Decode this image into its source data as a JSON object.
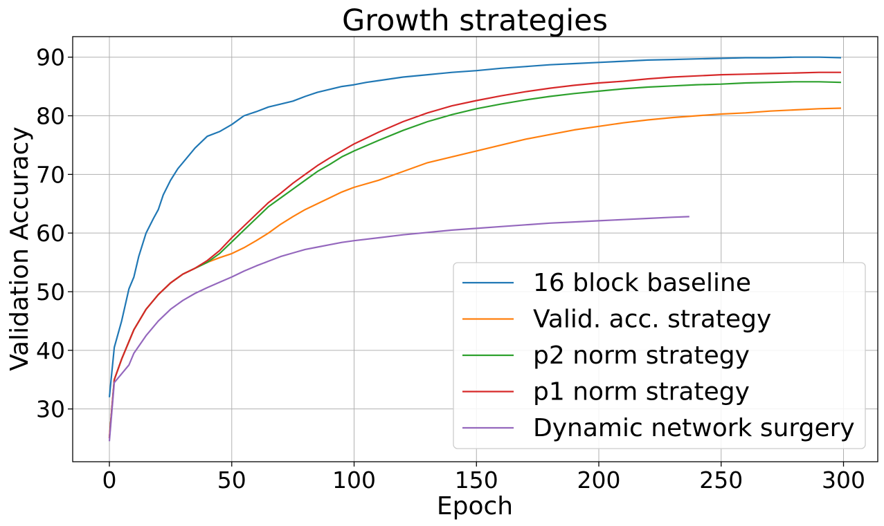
{
  "chart_data": {
    "type": "line",
    "title": "Growth strategies",
    "xlabel": "Epoch",
    "ylabel": "Validation Accuracy",
    "xlim": [
      -15,
      314
    ],
    "ylim": [
      21,
      93.5
    ],
    "xticks": [
      0,
      50,
      100,
      150,
      200,
      250,
      300
    ],
    "yticks": [
      30,
      40,
      50,
      60,
      70,
      80,
      90
    ],
    "grid": true,
    "legend_position": "lower-right",
    "series": [
      {
        "name": "16 block baseline",
        "color": "#1f77b4",
        "points": [
          [
            0,
            32
          ],
          [
            2,
            40.5
          ],
          [
            5,
            45
          ],
          [
            8,
            50.5
          ],
          [
            10,
            52.5
          ],
          [
            12,
            56
          ],
          [
            15,
            60
          ],
          [
            18,
            62.5
          ],
          [
            20,
            64
          ],
          [
            22,
            66.5
          ],
          [
            25,
            69
          ],
          [
            28,
            71
          ],
          [
            30,
            72
          ],
          [
            35,
            74.5
          ],
          [
            40,
            76.5
          ],
          [
            45,
            77.3
          ],
          [
            50,
            78.5
          ],
          [
            55,
            80
          ],
          [
            60,
            80.7
          ],
          [
            65,
            81.5
          ],
          [
            70,
            82
          ],
          [
            75,
            82.5
          ],
          [
            80,
            83.3
          ],
          [
            85,
            84
          ],
          [
            90,
            84.5
          ],
          [
            95,
            85
          ],
          [
            100,
            85.3
          ],
          [
            105,
            85.7
          ],
          [
            110,
            86
          ],
          [
            120,
            86.6
          ],
          [
            130,
            87
          ],
          [
            140,
            87.4
          ],
          [
            150,
            87.7
          ],
          [
            160,
            88.1
          ],
          [
            170,
            88.4
          ],
          [
            180,
            88.7
          ],
          [
            190,
            88.9
          ],
          [
            200,
            89.1
          ],
          [
            210,
            89.3
          ],
          [
            220,
            89.5
          ],
          [
            230,
            89.6
          ],
          [
            240,
            89.7
          ],
          [
            250,
            89.8
          ],
          [
            260,
            89.9
          ],
          [
            270,
            89.9
          ],
          [
            280,
            90
          ],
          [
            290,
            90
          ],
          [
            299,
            89.9
          ]
        ]
      },
      {
        "name": "Valid. acc. strategy",
        "color": "#ff7f0e",
        "points": [
          [
            0,
            25
          ],
          [
            2,
            35
          ],
          [
            5,
            38.5
          ],
          [
            8,
            41.5
          ],
          [
            10,
            43.5
          ],
          [
            15,
            47
          ],
          [
            20,
            49.5
          ],
          [
            25,
            51.5
          ],
          [
            30,
            53
          ],
          [
            35,
            54
          ],
          [
            40,
            55
          ],
          [
            45,
            55.8
          ],
          [
            50,
            56.5
          ],
          [
            55,
            57.5
          ],
          [
            60,
            58.7
          ],
          [
            65,
            60
          ],
          [
            70,
            61.5
          ],
          [
            75,
            62.8
          ],
          [
            80,
            64
          ],
          [
            85,
            65
          ],
          [
            90,
            66
          ],
          [
            95,
            67
          ],
          [
            100,
            67.8
          ],
          [
            110,
            69
          ],
          [
            120,
            70.5
          ],
          [
            130,
            72
          ],
          [
            140,
            73
          ],
          [
            150,
            74
          ],
          [
            160,
            75
          ],
          [
            170,
            76
          ],
          [
            180,
            76.8
          ],
          [
            190,
            77.6
          ],
          [
            200,
            78.2
          ],
          [
            210,
            78.8
          ],
          [
            220,
            79.3
          ],
          [
            230,
            79.7
          ],
          [
            240,
            80
          ],
          [
            250,
            80.3
          ],
          [
            260,
            80.5
          ],
          [
            270,
            80.8
          ],
          [
            280,
            81
          ],
          [
            290,
            81.2
          ],
          [
            299,
            81.3
          ]
        ]
      },
      {
        "name": "p2 norm strategy",
        "color": "#2ca02c",
        "points": [
          [
            0,
            25
          ],
          [
            2,
            35
          ],
          [
            5,
            38.5
          ],
          [
            8,
            41.5
          ],
          [
            10,
            43.5
          ],
          [
            15,
            47
          ],
          [
            20,
            49.5
          ],
          [
            25,
            51.5
          ],
          [
            30,
            53
          ],
          [
            35,
            54
          ],
          [
            40,
            55
          ],
          [
            45,
            56.5
          ],
          [
            50,
            58.5
          ],
          [
            55,
            60.5
          ],
          [
            60,
            62.5
          ],
          [
            65,
            64.5
          ],
          [
            70,
            66
          ],
          [
            75,
            67.5
          ],
          [
            80,
            69
          ],
          [
            85,
            70.5
          ],
          [
            90,
            71.7
          ],
          [
            95,
            73
          ],
          [
            100,
            74
          ],
          [
            110,
            75.8
          ],
          [
            120,
            77.5
          ],
          [
            130,
            79
          ],
          [
            140,
            80.2
          ],
          [
            150,
            81.2
          ],
          [
            160,
            82
          ],
          [
            170,
            82.7
          ],
          [
            180,
            83.3
          ],
          [
            190,
            83.8
          ],
          [
            200,
            84.2
          ],
          [
            210,
            84.6
          ],
          [
            220,
            84.9
          ],
          [
            230,
            85.1
          ],
          [
            240,
            85.3
          ],
          [
            250,
            85.4
          ],
          [
            260,
            85.6
          ],
          [
            270,
            85.7
          ],
          [
            280,
            85.8
          ],
          [
            290,
            85.8
          ],
          [
            299,
            85.7
          ]
        ]
      },
      {
        "name": "p1 norm strategy",
        "color": "#d62728",
        "points": [
          [
            0,
            25
          ],
          [
            2,
            35
          ],
          [
            5,
            38.5
          ],
          [
            8,
            41.5
          ],
          [
            10,
            43.5
          ],
          [
            15,
            47
          ],
          [
            20,
            49.5
          ],
          [
            25,
            51.5
          ],
          [
            30,
            53
          ],
          [
            35,
            54
          ],
          [
            40,
            55.3
          ],
          [
            45,
            57
          ],
          [
            50,
            59.2
          ],
          [
            55,
            61.2
          ],
          [
            60,
            63.2
          ],
          [
            65,
            65.2
          ],
          [
            70,
            66.8
          ],
          [
            75,
            68.5
          ],
          [
            80,
            70
          ],
          [
            85,
            71.5
          ],
          [
            90,
            72.8
          ],
          [
            95,
            74
          ],
          [
            100,
            75.2
          ],
          [
            110,
            77.2
          ],
          [
            120,
            79
          ],
          [
            130,
            80.5
          ],
          [
            140,
            81.7
          ],
          [
            150,
            82.6
          ],
          [
            160,
            83.4
          ],
          [
            170,
            84.1
          ],
          [
            180,
            84.7
          ],
          [
            190,
            85.2
          ],
          [
            200,
            85.6
          ],
          [
            210,
            85.9
          ],
          [
            220,
            86.3
          ],
          [
            230,
            86.6
          ],
          [
            240,
            86.8
          ],
          [
            250,
            87
          ],
          [
            260,
            87.1
          ],
          [
            270,
            87.2
          ],
          [
            280,
            87.3
          ],
          [
            290,
            87.4
          ],
          [
            299,
            87.4
          ]
        ]
      },
      {
        "name": "Dynamic network surgery",
        "color": "#9467bd",
        "points": [
          [
            0,
            24.5
          ],
          [
            2,
            34.5
          ],
          [
            5,
            36
          ],
          [
            8,
            37.5
          ],
          [
            10,
            39.5
          ],
          [
            15,
            42.5
          ],
          [
            20,
            45
          ],
          [
            25,
            47
          ],
          [
            30,
            48.5
          ],
          [
            35,
            49.7
          ],
          [
            40,
            50.7
          ],
          [
            45,
            51.6
          ],
          [
            50,
            52.5
          ],
          [
            55,
            53.5
          ],
          [
            60,
            54.4
          ],
          [
            65,
            55.2
          ],
          [
            70,
            56
          ],
          [
            75,
            56.6
          ],
          [
            80,
            57.2
          ],
          [
            85,
            57.6
          ],
          [
            90,
            58
          ],
          [
            95,
            58.4
          ],
          [
            100,
            58.7
          ],
          [
            110,
            59.2
          ],
          [
            120,
            59.7
          ],
          [
            130,
            60.1
          ],
          [
            140,
            60.5
          ],
          [
            150,
            60.8
          ],
          [
            160,
            61.1
          ],
          [
            170,
            61.4
          ],
          [
            180,
            61.7
          ],
          [
            190,
            61.9
          ],
          [
            200,
            62.1
          ],
          [
            210,
            62.3
          ],
          [
            220,
            62.5
          ],
          [
            230,
            62.7
          ],
          [
            237,
            62.8
          ]
        ]
      }
    ]
  }
}
